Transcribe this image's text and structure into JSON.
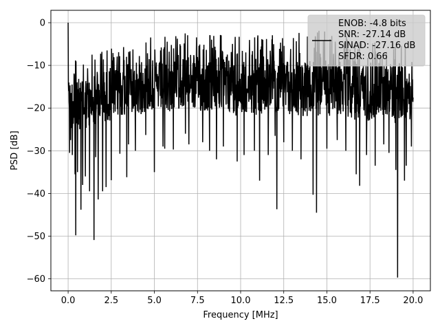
{
  "chart_data": {
    "type": "line",
    "xlabel": "Frequency [MHz]",
    "ylabel": "PSD [dB]",
    "xlim": [
      -1.0,
      21.0
    ],
    "ylim": [
      -62.8,
      2.9
    ],
    "xticks": [
      0.0,
      2.5,
      5.0,
      7.5,
      10.0,
      12.5,
      15.0,
      17.5,
      20.0
    ],
    "xtick_labels": [
      "0.0",
      "2.5",
      "5.0",
      "7.5",
      "10.0",
      "12.5",
      "15.0",
      "17.5",
      "20.0"
    ],
    "yticks": [
      0,
      -10,
      -20,
      -30,
      -40,
      -50,
      -60
    ],
    "ytick_labels": [
      "0",
      "−10",
      "−20",
      "−30",
      "−40",
      "−50",
      "−60"
    ],
    "grid": true,
    "legend_position": "top-right",
    "line_color": "#000000",
    "series": [
      {
        "name": "ENOB: -4.8 bits\nSNR: -27.14 dB\nSINAD: -27.16 dB\nSFDR: 0.66",
        "x": [
          0.0,
          0.03,
          0.06,
          0.09,
          0.12,
          0.15,
          0.2,
          0.25,
          0.3,
          0.35,
          0.4,
          0.45,
          0.5,
          0.6,
          0.75,
          0.85,
          1.0,
          1.2,
          1.5,
          1.75,
          2.0,
          2.25,
          2.5,
          2.75,
          3.0,
          3.5,
          4.0,
          4.5,
          5.0,
          5.5,
          6.0,
          6.5,
          6.8,
          7.0,
          7.5,
          8.0,
          8.5,
          9.0,
          9.5,
          9.8,
          10.0,
          10.5,
          11.0,
          11.3,
          11.5,
          12.0,
          12.1,
          12.5,
          13.0,
          13.5,
          14.0,
          14.3,
          14.5,
          15.0,
          15.5,
          16.0,
          16.5,
          16.9,
          17.0,
          17.5,
          18.0,
          18.5,
          18.9,
          19.0,
          19.1,
          19.5,
          19.7,
          20.0
        ],
        "y_upper": [
          0,
          -4,
          -6,
          -8,
          -7,
          -9,
          -8,
          -7,
          -10,
          -9,
          -8,
          -7,
          -10,
          -9,
          -8,
          -9,
          -7,
          -8,
          -6,
          -7,
          -5,
          -6,
          -6,
          -5,
          -5,
          -5,
          -4,
          -3,
          -3,
          -3,
          -2,
          -2,
          -1,
          -2,
          -2,
          -3,
          -2,
          -3,
          -2,
          -3,
          -2,
          -3,
          -2,
          -3,
          -2,
          -2,
          -1,
          -2,
          -3,
          -2,
          -3,
          -2,
          -1,
          -2,
          -3,
          -2,
          -2,
          -4,
          -3,
          -2,
          -3,
          -4,
          -3,
          -4,
          -3,
          -5,
          -4,
          -6
        ],
        "y_core_top": [
          -8,
          -10,
          -11,
          -12,
          -12,
          -13,
          -13,
          -12,
          -13,
          -14,
          -13,
          -13,
          -14,
          -13,
          -13,
          -14,
          -12,
          -13,
          -12,
          -12,
          -11,
          -11,
          -11,
          -11,
          -10,
          -10,
          -10,
          -9,
          -9,
          -9,
          -9,
          -8,
          -8,
          -8,
          -8,
          -9,
          -9,
          -9,
          -9,
          -9,
          -9,
          -9,
          -9,
          -9,
          -9,
          -9,
          -8,
          -9,
          -9,
          -9,
          -9,
          -9,
          -8,
          -9,
          -9,
          -9,
          -9,
          -10,
          -9,
          -9,
          -9,
          -10,
          -10,
          -10,
          -10,
          -10,
          -11,
          -11
        ],
        "y_core_bottom": [
          -16,
          -19,
          -22,
          -24,
          -25,
          -25,
          -26,
          -25,
          -26,
          -26,
          -25,
          -26,
          -26,
          -25,
          -25,
          -26,
          -25,
          -25,
          -24,
          -24,
          -24,
          -23,
          -23,
          -23,
          -22,
          -22,
          -22,
          -21,
          -21,
          -21,
          -21,
          -20,
          -20,
          -21,
          -21,
          -21,
          -21,
          -21,
          -21,
          -22,
          -21,
          -21,
          -22,
          -22,
          -22,
          -21,
          -21,
          -21,
          -22,
          -22,
          -22,
          -23,
          -22,
          -22,
          -22,
          -22,
          -23,
          -23,
          -23,
          -23,
          -22,
          -22,
          -23,
          -24,
          -23,
          -22,
          -23,
          -22
        ],
        "dips": [
          [
            0.05,
            -14
          ],
          [
            0.08,
            -30.5
          ],
          [
            0.15,
            -27.5
          ],
          [
            0.25,
            -31
          ],
          [
            0.4,
            -35.5
          ],
          [
            0.45,
            -49.8
          ],
          [
            0.55,
            -35
          ],
          [
            0.75,
            -43.8
          ],
          [
            0.85,
            -38
          ],
          [
            1.0,
            -36
          ],
          [
            1.25,
            -39.5
          ],
          [
            1.5,
            -50.9
          ],
          [
            1.6,
            -31.5
          ],
          [
            1.75,
            -41.4
          ],
          [
            2.0,
            -39.5
          ],
          [
            2.2,
            -38.5
          ],
          [
            2.5,
            -36.9
          ],
          [
            3.0,
            -30.7
          ],
          [
            3.4,
            -36.2
          ],
          [
            3.5,
            -28.5
          ],
          [
            3.9,
            -30
          ],
          [
            4.5,
            -26.3
          ],
          [
            5.0,
            -35
          ],
          [
            5.5,
            -29
          ],
          [
            5.6,
            -29.5
          ],
          [
            6.1,
            -29.7
          ],
          [
            6.8,
            -26
          ],
          [
            7.0,
            -28.5
          ],
          [
            7.8,
            -28
          ],
          [
            8.2,
            -30
          ],
          [
            8.6,
            -32
          ],
          [
            9.0,
            -29
          ],
          [
            9.8,
            -32.5
          ],
          [
            10.2,
            -31
          ],
          [
            10.8,
            -30
          ],
          [
            11.1,
            -37
          ],
          [
            11.6,
            -31
          ],
          [
            12.0,
            -26.5
          ],
          [
            12.1,
            -43.7
          ],
          [
            12.5,
            -28
          ],
          [
            13.0,
            -30
          ],
          [
            13.5,
            -32
          ],
          [
            14.2,
            -40.3
          ],
          [
            14.4,
            -44.5
          ],
          [
            15.0,
            -29.5
          ],
          [
            15.6,
            -27.5
          ],
          [
            16.1,
            -30
          ],
          [
            16.7,
            -35.5
          ],
          [
            16.9,
            -38.2
          ],
          [
            17.3,
            -31
          ],
          [
            17.8,
            -33.5
          ],
          [
            18.3,
            -28.5
          ],
          [
            18.6,
            -30.5
          ],
          [
            19.0,
            -34.5
          ],
          [
            19.1,
            -59.7
          ],
          [
            19.5,
            -37
          ],
          [
            19.6,
            -33.5
          ],
          [
            19.9,
            -29
          ]
        ]
      }
    ]
  }
}
